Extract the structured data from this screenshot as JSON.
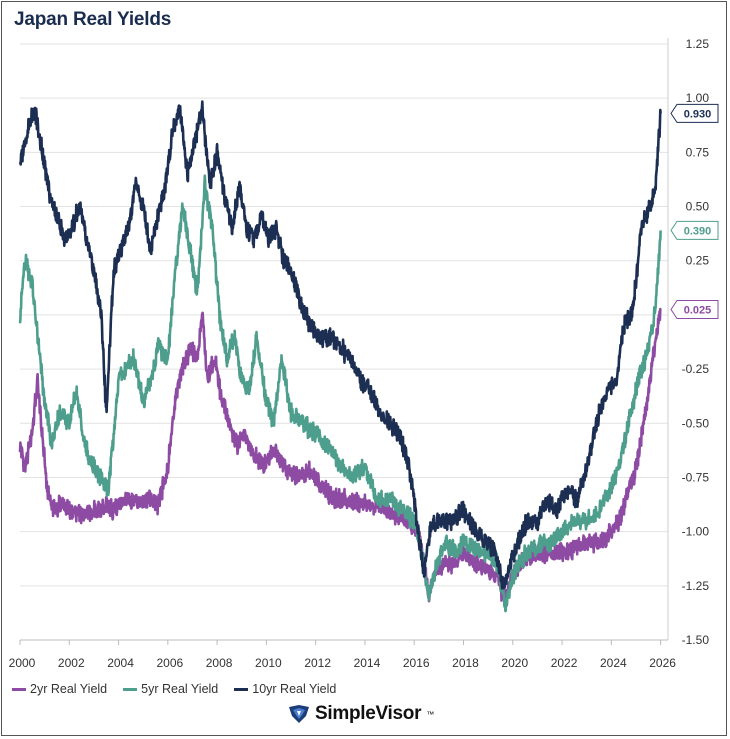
{
  "title": "Japan Real Yields",
  "brand": {
    "name": "SimpleVisor",
    "tm": "™"
  },
  "chart_data": {
    "type": "line",
    "title": "Japan Real Yields",
    "xlim": [
      2000,
      2026.3
    ],
    "ylim": [
      -1.5,
      1.25
    ],
    "x_ticks": [
      "2000",
      "2002",
      "2004",
      "2006",
      "2008",
      "2010",
      "2012",
      "2014",
      "2016",
      "2018",
      "2020",
      "2022",
      "2024",
      "2026"
    ],
    "y_ticks": [
      "1.25",
      "1.00",
      "0.75",
      "0.50",
      "0.25",
      "0.00",
      "-0.25",
      "-0.50",
      "-0.75",
      "-1.00",
      "-1.25",
      "-1.50"
    ],
    "grid": true,
    "legend_position": "bottom-left",
    "series": [
      {
        "name": "2yr Real Yield",
        "color": "#8e4ba3",
        "last_label": "0.025",
        "x": [
          2000.0,
          2000.2,
          2000.5,
          2000.7,
          2000.9,
          2001.1,
          2001.3,
          2001.6,
          2002.0,
          2002.5,
          2003.0,
          2003.5,
          2003.8,
          2004.3,
          2004.8,
          2005.2,
          2005.6,
          2006.0,
          2006.3,
          2006.6,
          2006.9,
          2007.2,
          2007.4,
          2007.6,
          2007.9,
          2008.2,
          2008.5,
          2008.8,
          2009.1,
          2009.5,
          2009.9,
          2010.3,
          2010.7,
          2011.0,
          2011.4,
          2011.8,
          2012.3,
          2012.8,
          2013.3,
          2013.8,
          2014.3,
          2014.8,
          2015.3,
          2015.8,
          2016.2,
          2016.4,
          2016.6,
          2016.8,
          2017.2,
          2017.6,
          2018.0,
          2018.5,
          2019.0,
          2019.4,
          2019.6,
          2019.8,
          2020.0,
          2020.3,
          2020.6,
          2021.0,
          2021.5,
          2022.0,
          2022.5,
          2023.0,
          2023.5,
          2024.0,
          2024.3,
          2024.6,
          2024.9,
          2025.1,
          2025.3,
          2025.5,
          2025.7,
          2025.9,
          2026.0
        ],
        "y": [
          -0.6,
          -0.7,
          -0.55,
          -0.3,
          -0.55,
          -0.8,
          -0.9,
          -0.88,
          -0.9,
          -0.92,
          -0.9,
          -0.88,
          -0.9,
          -0.85,
          -0.87,
          -0.85,
          -0.88,
          -0.7,
          -0.4,
          -0.25,
          -0.15,
          -0.2,
          0.0,
          -0.3,
          -0.2,
          -0.4,
          -0.5,
          -0.6,
          -0.55,
          -0.65,
          -0.7,
          -0.62,
          -0.7,
          -0.72,
          -0.75,
          -0.72,
          -0.8,
          -0.85,
          -0.85,
          -0.87,
          -0.88,
          -0.9,
          -0.92,
          -0.95,
          -1.0,
          -1.15,
          -1.3,
          -1.2,
          -1.15,
          -1.15,
          -1.1,
          -1.15,
          -1.18,
          -1.22,
          -1.3,
          -1.28,
          -1.2,
          -1.15,
          -1.12,
          -1.1,
          -1.1,
          -1.1,
          -1.08,
          -1.05,
          -1.05,
          -1.0,
          -0.95,
          -0.85,
          -0.75,
          -0.65,
          -0.5,
          -0.35,
          -0.2,
          -0.05,
          0.025
        ]
      },
      {
        "name": "5yr Real Yield",
        "color": "#4d9e8c",
        "last_label": "0.390",
        "x": [
          2000.0,
          2000.2,
          2000.5,
          2000.8,
          2001.0,
          2001.3,
          2001.6,
          2002.0,
          2002.3,
          2002.6,
          2003.0,
          2003.3,
          2003.6,
          2004.0,
          2004.3,
          2004.6,
          2005.0,
          2005.3,
          2005.6,
          2006.0,
          2006.3,
          2006.6,
          2006.9,
          2007.2,
          2007.5,
          2007.8,
          2008.1,
          2008.4,
          2008.7,
          2009.0,
          2009.3,
          2009.6,
          2010.0,
          2010.3,
          2010.6,
          2011.0,
          2011.5,
          2012.0,
          2012.5,
          2013.0,
          2013.5,
          2014.0,
          2014.5,
          2015.0,
          2015.5,
          2016.0,
          2016.3,
          2016.6,
          2016.9,
          2017.3,
          2017.7,
          2018.0,
          2018.5,
          2019.0,
          2019.4,
          2019.7,
          2020.0,
          2020.4,
          2020.8,
          2021.2,
          2021.6,
          2022.0,
          2022.5,
          2023.0,
          2023.5,
          2024.0,
          2024.3,
          2024.6,
          2024.9,
          2025.1,
          2025.4,
          2025.7,
          2025.9,
          2026.0
        ],
        "y": [
          0.0,
          0.25,
          0.15,
          -0.2,
          -0.4,
          -0.6,
          -0.45,
          -0.5,
          -0.35,
          -0.6,
          -0.7,
          -0.75,
          -0.8,
          -0.3,
          -0.25,
          -0.2,
          -0.4,
          -0.3,
          -0.15,
          -0.2,
          0.2,
          0.5,
          0.3,
          0.1,
          0.6,
          0.4,
          0.0,
          -0.2,
          -0.1,
          -0.3,
          -0.35,
          -0.1,
          -0.4,
          -0.5,
          -0.2,
          -0.45,
          -0.5,
          -0.55,
          -0.6,
          -0.7,
          -0.75,
          -0.7,
          -0.85,
          -0.85,
          -0.9,
          -0.95,
          -1.1,
          -1.3,
          -1.15,
          -1.05,
          -1.1,
          -1.05,
          -1.08,
          -1.1,
          -1.15,
          -1.35,
          -1.2,
          -1.12,
          -1.08,
          -1.05,
          -1.05,
          -1.0,
          -0.95,
          -0.95,
          -0.9,
          -0.8,
          -0.7,
          -0.55,
          -0.4,
          -0.3,
          -0.2,
          -0.05,
          0.2,
          0.39
        ]
      },
      {
        "name": "10yr Real Yield",
        "color": "#1c2f53",
        "last_label": "0.930",
        "x": [
          2000.0,
          2000.3,
          2000.6,
          2000.9,
          2001.2,
          2001.5,
          2001.8,
          2002.1,
          2002.4,
          2002.7,
          2003.0,
          2003.3,
          2003.5,
          2003.8,
          2004.1,
          2004.4,
          2004.7,
          2005.0,
          2005.3,
          2005.6,
          2005.9,
          2006.2,
          2006.5,
          2006.8,
          2007.1,
          2007.4,
          2007.7,
          2008.0,
          2008.3,
          2008.6,
          2008.9,
          2009.2,
          2009.5,
          2009.8,
          2010.1,
          2010.4,
          2010.7,
          2011.0,
          2011.4,
          2011.8,
          2012.2,
          2012.6,
          2013.0,
          2013.4,
          2013.8,
          2014.2,
          2014.6,
          2015.0,
          2015.4,
          2015.8,
          2016.1,
          2016.4,
          2016.7,
          2017.0,
          2017.5,
          2018.0,
          2018.5,
          2019.0,
          2019.3,
          2019.6,
          2019.9,
          2020.2,
          2020.6,
          2021.0,
          2021.4,
          2021.8,
          2022.2,
          2022.6,
          2023.0,
          2023.4,
          2023.8,
          2024.2,
          2024.5,
          2024.8,
          2025.0,
          2025.2,
          2025.4,
          2025.6,
          2025.8,
          2026.0
        ],
        "y": [
          0.7,
          0.85,
          0.95,
          0.75,
          0.55,
          0.45,
          0.35,
          0.4,
          0.5,
          0.35,
          0.2,
          0.0,
          -0.45,
          0.2,
          0.3,
          0.4,
          0.6,
          0.5,
          0.3,
          0.45,
          0.6,
          0.85,
          0.95,
          0.65,
          0.8,
          0.95,
          0.6,
          0.75,
          0.55,
          0.4,
          0.6,
          0.4,
          0.35,
          0.45,
          0.35,
          0.4,
          0.25,
          0.2,
          0.05,
          -0.05,
          -0.1,
          -0.1,
          -0.15,
          -0.2,
          -0.3,
          -0.35,
          -0.45,
          -0.5,
          -0.55,
          -0.7,
          -0.95,
          -1.2,
          -0.95,
          -0.95,
          -0.95,
          -0.9,
          -1.0,
          -1.05,
          -1.1,
          -1.25,
          -1.15,
          -1.05,
          -0.95,
          -0.95,
          -0.85,
          -0.9,
          -0.8,
          -0.85,
          -0.7,
          -0.5,
          -0.35,
          -0.3,
          -0.05,
          0.0,
          0.15,
          0.4,
          0.45,
          0.5,
          0.6,
          0.93
        ]
      }
    ]
  }
}
